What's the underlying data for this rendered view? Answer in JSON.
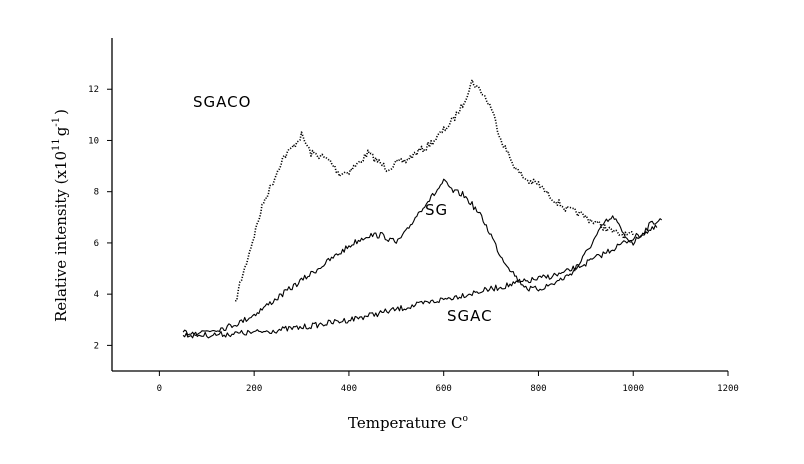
{
  "chart_data": {
    "type": "line",
    "xlabel": "Temperature C",
    "xlabel_superscript": "o",
    "ylabel": "Relative intensity (x10",
    "ylabel_exponent": "11",
    "ylabel_unit": "g",
    "ylabel_unit_exponent": "-1",
    "ylabel_close": ")",
    "xlim": [
      -100,
      1200
    ],
    "ylim": [
      1,
      14
    ],
    "x_ticks": [
      0,
      200,
      400,
      600,
      800,
      1000,
      1200
    ],
    "x_tick_labels": [
      "0",
      "200",
      "400",
      "600",
      "800",
      "1000",
      "1200"
    ],
    "y_ticks": [
      2,
      4,
      6,
      8,
      10,
      12
    ],
    "y_tick_labels": [
      "2",
      "4",
      "6",
      "8",
      "10",
      "12"
    ],
    "grid": false,
    "legend": "none",
    "series": [
      {
        "name": "SGACO",
        "style": "dotted",
        "x": [
          160,
          170,
          180,
          200,
          220,
          240,
          260,
          280,
          300,
          320,
          340,
          360,
          380,
          400,
          420,
          440,
          460,
          480,
          500,
          520,
          540,
          560,
          580,
          600,
          620,
          640,
          660,
          680,
          700,
          720,
          740,
          760,
          780,
          800,
          820,
          840,
          860,
          880,
          900,
          920,
          940,
          960,
          980,
          1000
        ],
        "y": [
          3.6,
          4.4,
          5.0,
          6.3,
          7.6,
          8.4,
          9.3,
          9.7,
          10.2,
          9.5,
          9.4,
          9.2,
          8.7,
          8.8,
          9.1,
          9.5,
          9.2,
          8.9,
          9.1,
          9.2,
          9.5,
          9.7,
          10.0,
          10.4,
          10.8,
          11.4,
          12.3,
          11.9,
          11.3,
          10.1,
          9.3,
          8.7,
          8.4,
          8.3,
          7.9,
          7.6,
          7.3,
          7.2,
          7.0,
          6.8,
          6.6,
          6.4,
          6.3,
          6.3
        ]
      },
      {
        "name": "SG",
        "style": "solid",
        "x": [
          50,
          80,
          110,
          140,
          170,
          200,
          230,
          260,
          290,
          320,
          350,
          380,
          410,
          440,
          470,
          500,
          520,
          540,
          560,
          580,
          600,
          620,
          640,
          660,
          680,
          700,
          720,
          740,
          760,
          780,
          800,
          830,
          860,
          880,
          900,
          920,
          940,
          960,
          980,
          1000,
          1020,
          1040,
          1060
        ],
        "y": [
          2.5,
          2.5,
          2.6,
          2.7,
          2.9,
          3.2,
          3.6,
          4.0,
          4.4,
          4.8,
          5.2,
          5.6,
          6.0,
          6.3,
          6.3,
          6.0,
          6.4,
          7.0,
          7.5,
          7.9,
          8.4,
          8.0,
          7.9,
          7.5,
          7.0,
          6.3,
          5.5,
          5.0,
          4.5,
          4.2,
          4.2,
          4.4,
          4.7,
          5.0,
          5.6,
          6.2,
          6.8,
          7.0,
          6.3,
          6.0,
          6.4,
          6.8,
          6.9
        ]
      },
      {
        "name": "SGAC",
        "style": "solid",
        "x": [
          50,
          100,
          150,
          200,
          250,
          300,
          350,
          400,
          450,
          500,
          550,
          600,
          650,
          700,
          750,
          800,
          850,
          900,
          950,
          1000,
          1050
        ],
        "y": [
          2.4,
          2.4,
          2.45,
          2.5,
          2.6,
          2.7,
          2.85,
          3.0,
          3.2,
          3.4,
          3.6,
          3.8,
          4.0,
          4.2,
          4.4,
          4.6,
          4.8,
          5.2,
          5.7,
          6.2,
          6.6
        ]
      }
    ],
    "annotations": [
      "SGACO",
      "SG",
      "SGAC"
    ]
  }
}
